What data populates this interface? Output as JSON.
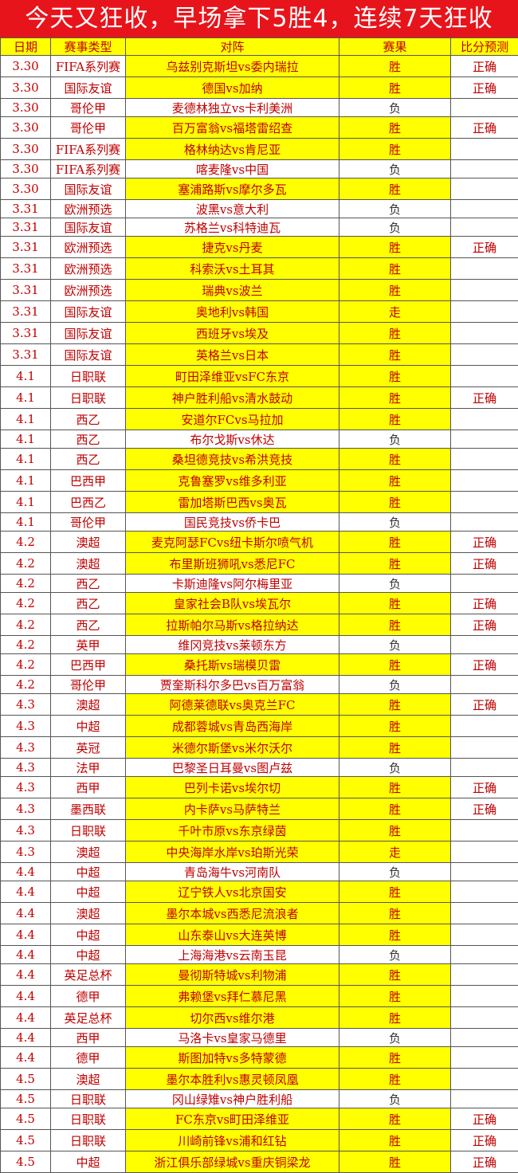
{
  "title": "今天又狂收，早场拿下5胜4，连续7天狂收",
  "colors": {
    "title_bg": "#e8141b",
    "highlight": "#ffff00",
    "text": "#c00000"
  },
  "columns": [
    "日期",
    "赛事类型",
    "对阵",
    "赛果",
    "比分预测"
  ],
  "rows": [
    {
      "date": "3.30",
      "league": "FIFA系列赛",
      "match": "乌兹别克斯坦vs委内瑞拉",
      "result": "胜",
      "prediction": "正确"
    },
    {
      "date": "3.30",
      "league": "国际友谊",
      "match": "德国vs加纳",
      "result": "胜",
      "prediction": "正确"
    },
    {
      "date": "3.30",
      "league": "哥伦甲",
      "match": "麦德林独立vs卡利美洲",
      "result": "负",
      "prediction": ""
    },
    {
      "date": "3.30",
      "league": "哥伦甲",
      "match": "百万富翁vs福塔雷绍查",
      "result": "胜",
      "prediction": "正确"
    },
    {
      "date": "3.30",
      "league": "FIFA系列赛",
      "match": "格林纳达vs肯尼亚",
      "result": "胜",
      "prediction": ""
    },
    {
      "date": "3.30",
      "league": "FIFA系列赛",
      "match": "喀麦隆vs中国",
      "result": "负",
      "prediction": ""
    },
    {
      "date": "3.30",
      "league": "国际友谊",
      "match": "塞浦路斯vs摩尔多瓦",
      "result": "胜",
      "prediction": ""
    },
    {
      "date": "3.31",
      "league": "欧洲预选",
      "match": "波黑vs意大利",
      "result": "负",
      "prediction": ""
    },
    {
      "date": "3.31",
      "league": "国际友谊",
      "match": "苏格兰vs科特迪瓦",
      "result": "负",
      "prediction": ""
    },
    {
      "date": "3.31",
      "league": "欧洲预选",
      "match": "捷克vs丹麦",
      "result": "胜",
      "prediction": "正确"
    },
    {
      "date": "3.31",
      "league": "欧洲预选",
      "match": "科索沃vs土耳其",
      "result": "胜",
      "prediction": ""
    },
    {
      "date": "3.31",
      "league": "欧洲预选",
      "match": "瑞典vs波兰",
      "result": "胜",
      "prediction": ""
    },
    {
      "date": "3.31",
      "league": "国际友谊",
      "match": "奥地利vs韩国",
      "result": "走",
      "prediction": ""
    },
    {
      "date": "3.31",
      "league": "国际友谊",
      "match": "西班牙vs埃及",
      "result": "胜",
      "prediction": ""
    },
    {
      "date": "3.31",
      "league": "国际友谊",
      "match": "英格兰vs日本",
      "result": "胜",
      "prediction": ""
    },
    {
      "date": "4.1",
      "league": "日职联",
      "match": "町田泽维亚vsFC东京",
      "result": "胜",
      "prediction": ""
    },
    {
      "date": "4.1",
      "league": "日职联",
      "match": "神户胜利船vs清水鼓动",
      "result": "胜",
      "prediction": "正确"
    },
    {
      "date": "4.1",
      "league": "西乙",
      "match": "安道尔FCvs马拉加",
      "result": "胜",
      "prediction": ""
    },
    {
      "date": "4.1",
      "league": "西乙",
      "match": "布尔戈斯vs休达",
      "result": "负",
      "prediction": ""
    },
    {
      "date": "4.1",
      "league": "西乙",
      "match": "桑坦德竞技vs希洪竞技",
      "result": "胜",
      "prediction": ""
    },
    {
      "date": "4.1",
      "league": "巴西甲",
      "match": "克鲁塞罗vs维多利亚",
      "result": "胜",
      "prediction": ""
    },
    {
      "date": "4.1",
      "league": "巴西乙",
      "match": "雷加塔斯巴西vs奥瓦",
      "result": "胜",
      "prediction": ""
    },
    {
      "date": "4.1",
      "league": "哥伦甲",
      "match": "国民竞技vs侨卡巴",
      "result": "负",
      "prediction": ""
    },
    {
      "date": "4.2",
      "league": "澳超",
      "match": "麦克阿瑟FCvs纽卡斯尔喷气机",
      "result": "胜",
      "prediction": "正确"
    },
    {
      "date": "4.2",
      "league": "澳超",
      "match": "布里斯班狮吼vs悉尼FC",
      "result": "胜",
      "prediction": "正确"
    },
    {
      "date": "4.2",
      "league": "西乙",
      "match": "卡斯迪隆vs阿尔梅里亚",
      "result": "负",
      "prediction": ""
    },
    {
      "date": "4.2",
      "league": "西乙",
      "match": "皇家社会B队vs埃瓦尔",
      "result": "胜",
      "prediction": "正确"
    },
    {
      "date": "4.2",
      "league": "西乙",
      "match": "拉斯帕尔马斯vs格拉纳达",
      "result": "胜",
      "prediction": "正确"
    },
    {
      "date": "4.2",
      "league": "英甲",
      "match": "维冈竞技vs莱顿东方",
      "result": "负",
      "prediction": ""
    },
    {
      "date": "4.2",
      "league": "巴西甲",
      "match": "桑托斯vs瑞模贝雷",
      "result": "胜",
      "prediction": "正确"
    },
    {
      "date": "4.2",
      "league": "哥伦甲",
      "match": "贾奎斯科尔多巴vs百万富翁",
      "result": "负",
      "prediction": ""
    },
    {
      "date": "4.3",
      "league": "澳超",
      "match": "阿德莱德联vs奥克兰FC",
      "result": "胜",
      "prediction": "正确"
    },
    {
      "date": "4.3",
      "league": "中超",
      "match": "成都蓉城vs青岛西海岸",
      "result": "胜",
      "prediction": ""
    },
    {
      "date": "4.3",
      "league": "英冠",
      "match": "米德尔斯堡vs米尔沃尔",
      "result": "胜",
      "prediction": ""
    },
    {
      "date": "4.3",
      "league": "法甲",
      "match": "巴黎圣日耳曼vs图卢兹",
      "result": "负",
      "prediction": ""
    },
    {
      "date": "4.3",
      "league": "西甲",
      "match": "巴列卡诺vs埃尔切",
      "result": "胜",
      "prediction": "正确"
    },
    {
      "date": "4.3",
      "league": "墨西联",
      "match": "内卡萨vs马萨特兰",
      "result": "胜",
      "prediction": "正确"
    },
    {
      "date": "4.3",
      "league": "日职联",
      "match": "千叶市原vs东京绿茵",
      "result": "胜",
      "prediction": ""
    },
    {
      "date": "4.3",
      "league": "澳超",
      "match": "中央海岸水岸vs珀斯光荣",
      "result": "走",
      "prediction": ""
    },
    {
      "date": "4.4",
      "league": "中超",
      "match": "青岛海牛vs河南队",
      "result": "负",
      "prediction": ""
    },
    {
      "date": "4.4",
      "league": "中超",
      "match": "辽宁铁人vs北京国安",
      "result": "胜",
      "prediction": ""
    },
    {
      "date": "4.4",
      "league": "澳超",
      "match": "墨尔本城vs西悉尼流浪者",
      "result": "胜",
      "prediction": ""
    },
    {
      "date": "4.4",
      "league": "中超",
      "match": "山东泰山vs大连英博",
      "result": "胜",
      "prediction": ""
    },
    {
      "date": "4.4",
      "league": "中超",
      "match": "上海海港vs云南玉昆",
      "result": "负",
      "prediction": ""
    },
    {
      "date": "4.4",
      "league": "英足总杯",
      "match": "曼彻斯特城vs利物浦",
      "result": "胜",
      "prediction": ""
    },
    {
      "date": "4.4",
      "league": "德甲",
      "match": "弗赖堡vs拜仁慕尼黑",
      "result": "胜",
      "prediction": ""
    },
    {
      "date": "4.4",
      "league": "英足总杯",
      "match": "切尔西vs维尔港",
      "result": "胜",
      "prediction": ""
    },
    {
      "date": "4.4",
      "league": "西甲",
      "match": "马洛卡vs皇家马德里",
      "result": "负",
      "prediction": ""
    },
    {
      "date": "4.4",
      "league": "德甲",
      "match": "斯图加特vs多特蒙德",
      "result": "胜",
      "prediction": ""
    },
    {
      "date": "4.5",
      "league": "澳超",
      "match": "墨尔本胜利vs惠灵顿凤凰",
      "result": "胜",
      "prediction": ""
    },
    {
      "date": "4.5",
      "league": "日职联",
      "match": "冈山绿雉vs神户胜利船",
      "result": "负",
      "prediction": ""
    },
    {
      "date": "4.5",
      "league": "日职联",
      "match": "FC东京vs町田泽维亚",
      "result": "胜",
      "prediction": "正确"
    },
    {
      "date": "4.5",
      "league": "日职联",
      "match": "川崎前锋vs浦和红钻",
      "result": "胜",
      "prediction": "正确"
    },
    {
      "date": "4.5",
      "league": "中超",
      "match": "浙江俱乐部绿城vs重庆铜梁龙",
      "result": "胜",
      "prediction": "正确"
    }
  ]
}
